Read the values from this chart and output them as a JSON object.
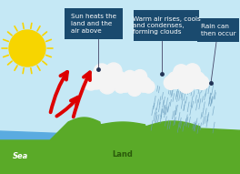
{
  "bg_color": "#c5e8f5",
  "sea_color": "#5aabe0",
  "land_color": "#5aaa28",
  "sun_color": "#f7d500",
  "sun_ray_color": "#f7d500",
  "cloud_white": "#f4f4f4",
  "cloud_shadow": "#ddeeff",
  "arrow_color": "#dd0000",
  "rain_color": "#6699bb",
  "label_bg": "#1a4a6e",
  "label_text": "#ffffff",
  "label_font_size": 5.2,
  "sea_label": "Sea",
  "land_label": "Land",
  "sea_label_color": "#ffffff",
  "land_label_color": "#2a5a0a",
  "label1": "Sun heats the\nland and the\nair above",
  "label2": "Warm air rises, cools\nand condenses,\nforming clouds",
  "label3": "Rain can\nthen occur",
  "connector_color": "#444466",
  "dot_color": "#223355"
}
